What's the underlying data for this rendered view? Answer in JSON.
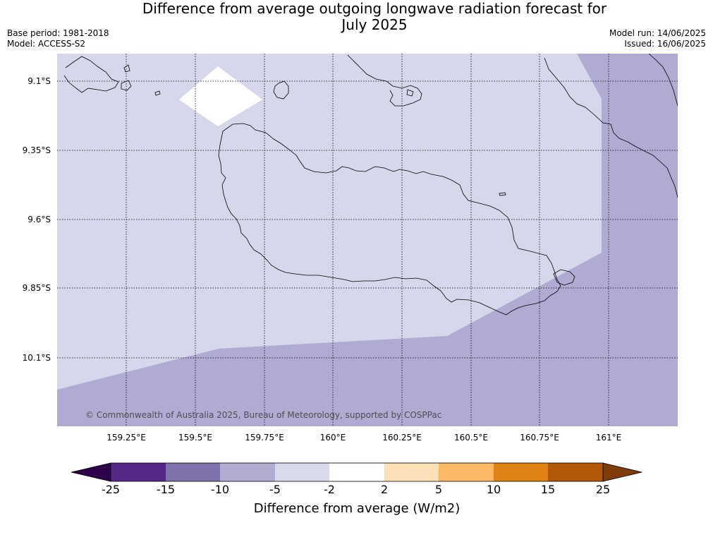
{
  "header": {
    "title_line1": "Difference from average outgoing longwave radiation forecast for",
    "title_line2": "July 2025",
    "base_period": "Base period: 1981-2018",
    "model": "Model: ACCESS-S2",
    "model_run": "Model run: 14/06/2025",
    "issued": "Issued: 16/06/2025"
  },
  "map": {
    "lat_labels": [
      "9.1°S",
      "9.35°S",
      "9.6°S",
      "9.85°S",
      "10.1°S"
    ],
    "lon_labels": [
      "159.25°E",
      "159.5°E",
      "159.75°E",
      "160°E",
      "160.25°E",
      "160.5°E",
      "160.75°E",
      "161°E"
    ],
    "copyright": "© Commonwealth of Australia 2025, Bureau of Meteorology, supported by COSPPac",
    "colors": {
      "band_minus5_minus2": "#d6d7ea",
      "band_minus10_minus5": "#b0abd3",
      "band_minus2_2": "#ffffff",
      "coastline": "#000000"
    }
  },
  "colorbar": {
    "title": "Difference from average (W/m2)",
    "ticks": [
      "-25",
      "-15",
      "-10",
      "-5",
      "-2",
      "2",
      "5",
      "10",
      "15",
      "25"
    ],
    "colors": [
      "#2d004b",
      "#542788",
      "#8073ac",
      "#b2abd2",
      "#d8daeb",
      "#ffffff",
      "#fee0b6",
      "#fdb863",
      "#e08214",
      "#b35806",
      "#7f3b08"
    ]
  }
}
